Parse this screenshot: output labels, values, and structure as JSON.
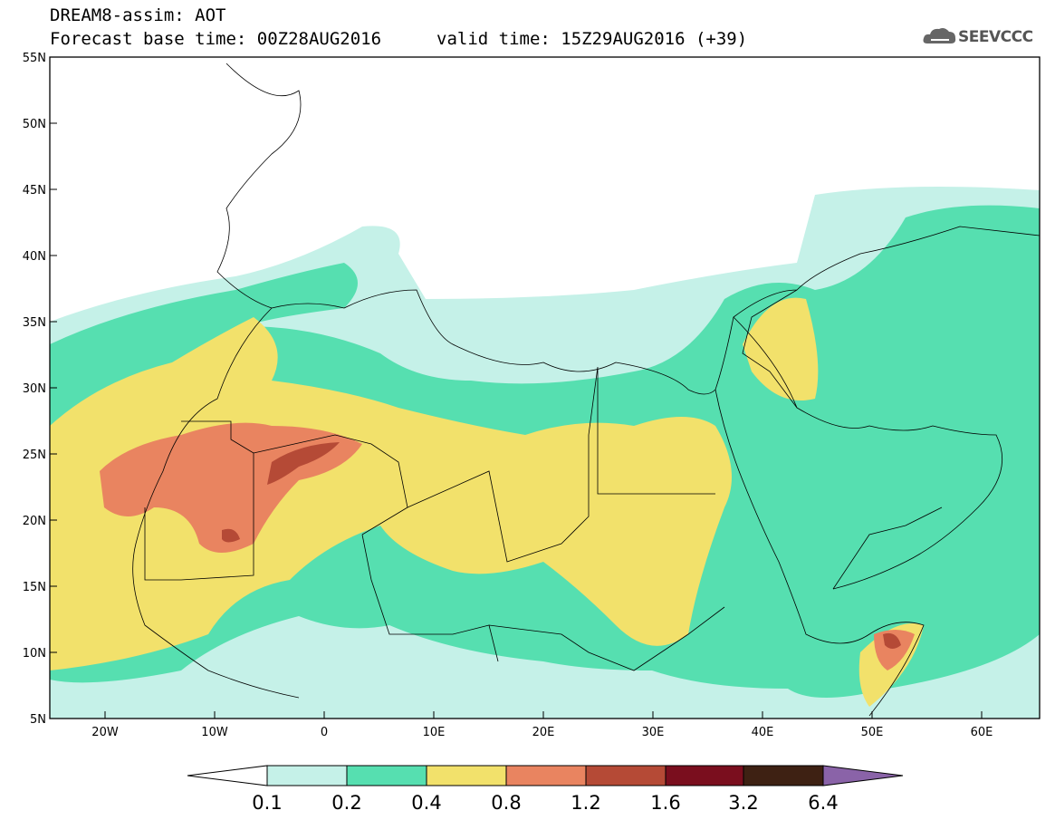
{
  "title": {
    "line1": "DREAM8-assim: AOT",
    "forecast": "Forecast base time: 00Z28AUG2016",
    "valid": "valid time: 15Z29AUG2016 (+39)"
  },
  "logo": {
    "text": "SEEVCCC",
    "icon": "cloud-icon"
  },
  "map": {
    "variable": "Aerosol Optical Thickness",
    "lon_range": [
      -25,
      65
    ],
    "lat_range": [
      5,
      55
    ],
    "lat_labels": [
      "55N",
      "50N",
      "45N",
      "40N",
      "35N",
      "30N",
      "25N",
      "20N",
      "15N",
      "10N",
      "5N"
    ],
    "lon_labels": [
      "20W",
      "10W",
      "0",
      "10E",
      "20E",
      "30E",
      "40E",
      "50E",
      "60E"
    ]
  },
  "colorbar": {
    "levels": [
      "0.1",
      "0.2",
      "0.4",
      "0.8",
      "1.2",
      "1.6",
      "3.2",
      "6.4"
    ],
    "colors": [
      "#ffffff",
      "#c5f1e8",
      "#56dfb0",
      "#f2e16b",
      "#e98460",
      "#b54a36",
      "#7a0e1e",
      "#3e2113",
      "#8a63a8"
    ]
  }
}
